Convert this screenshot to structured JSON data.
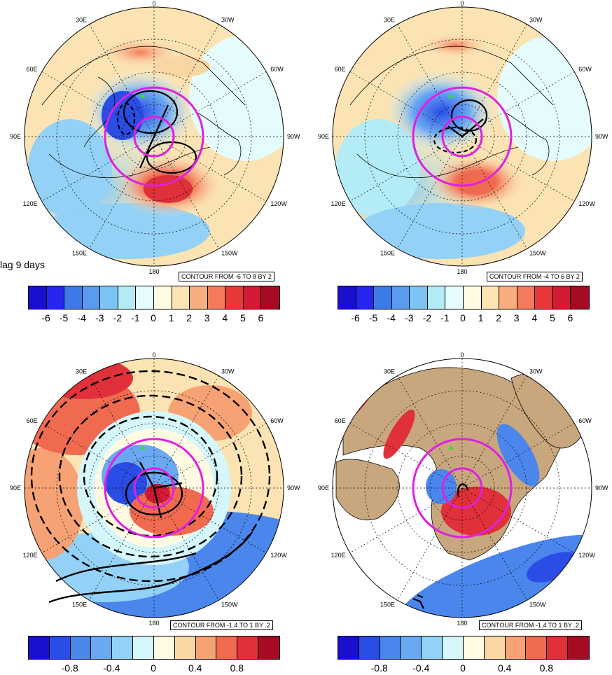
{
  "lag_label": "lag 9 days",
  "longitude_labels": [
    "0",
    "30W",
    "60W",
    "90W",
    "120W",
    "150W",
    "180",
    "150E",
    "120E",
    "90E",
    "60E",
    "30E"
  ],
  "panels": [
    {
      "id": "top-left",
      "contour_text": "CONTOUR FROM -6 TO 8 BY 2",
      "colorbar_labels": [
        "-6",
        "-5",
        "-4",
        "-3",
        "-2",
        "-1",
        "0",
        "1",
        "2",
        "3",
        "4",
        "5",
        "6"
      ]
    },
    {
      "id": "top-right",
      "contour_text": "CONTOUR FROM -4 TO 6 BY 2",
      "colorbar_labels": [
        "-6",
        "-5",
        "-4",
        "-3",
        "-2",
        "-1",
        "0",
        "1",
        "2",
        "3",
        "4",
        "5",
        "6"
      ]
    },
    {
      "id": "bottom-left",
      "contour_text": "CONTOUR FROM -1.4 TO 1 BY .2",
      "colorbar_labels": [
        "-0.8",
        "-0.4",
        "0",
        "0.4",
        "0.8"
      ]
    },
    {
      "id": "bottom-right",
      "contour_text": "CONTOUR FROM -1.4 TO 1 BY .2",
      "colorbar_labels": [
        "-0.8",
        "-0.4",
        "0",
        "0.4",
        "0.8"
      ]
    }
  ],
  "colors": {
    "colorbar_13": [
      "#1b0fcf",
      "#2626ee",
      "#3d7ae8",
      "#5a9bf0",
      "#7cc4f4",
      "#b3ecf6",
      "#e6fbfb",
      "#fffbe3",
      "#fbe3b3",
      "#f8ad7e",
      "#f37a5a",
      "#e83838",
      "#d31b34",
      "#a50b22"
    ],
    "colorbar_12": [
      "#1b0fcf",
      "#2a4de6",
      "#4a86ec",
      "#6aa9f2",
      "#94d1f6",
      "#d5f6fa",
      "#fffbe3",
      "#f9d6a4",
      "#f6a275",
      "#f06a50",
      "#e0303a",
      "#a50b22"
    ],
    "land_fill": "#c8a77e",
    "pink_circle": "#e020e0",
    "green_marker": "#33dd33"
  }
}
